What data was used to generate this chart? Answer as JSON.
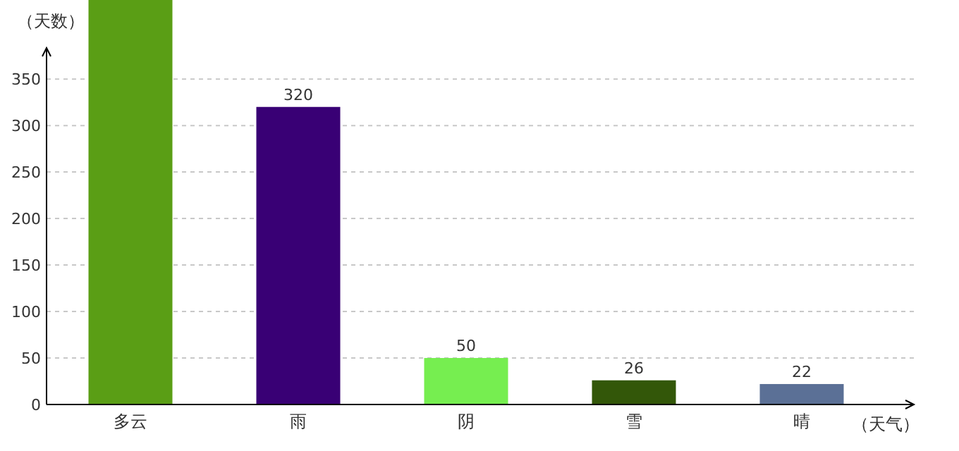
{
  "chart_data": {
    "type": "bar",
    "xlabel": "（天气）",
    "ylabel": "（天数）",
    "categories": [
      "多云",
      "雨",
      "阴",
      "雪",
      "晴"
    ],
    "values": [
      435,
      320,
      50,
      26,
      22
    ],
    "colors": [
      "#5a9e15",
      "#390075",
      "#76ee50",
      "#335709",
      "#5b7096"
    ],
    "value_labels": [
      null,
      "320",
      "50",
      "26",
      "22"
    ],
    "ylim": [
      0,
      435
    ],
    "yticks": [
      0,
      50,
      100,
      150,
      200,
      250,
      300,
      350
    ],
    "grid": "y"
  }
}
